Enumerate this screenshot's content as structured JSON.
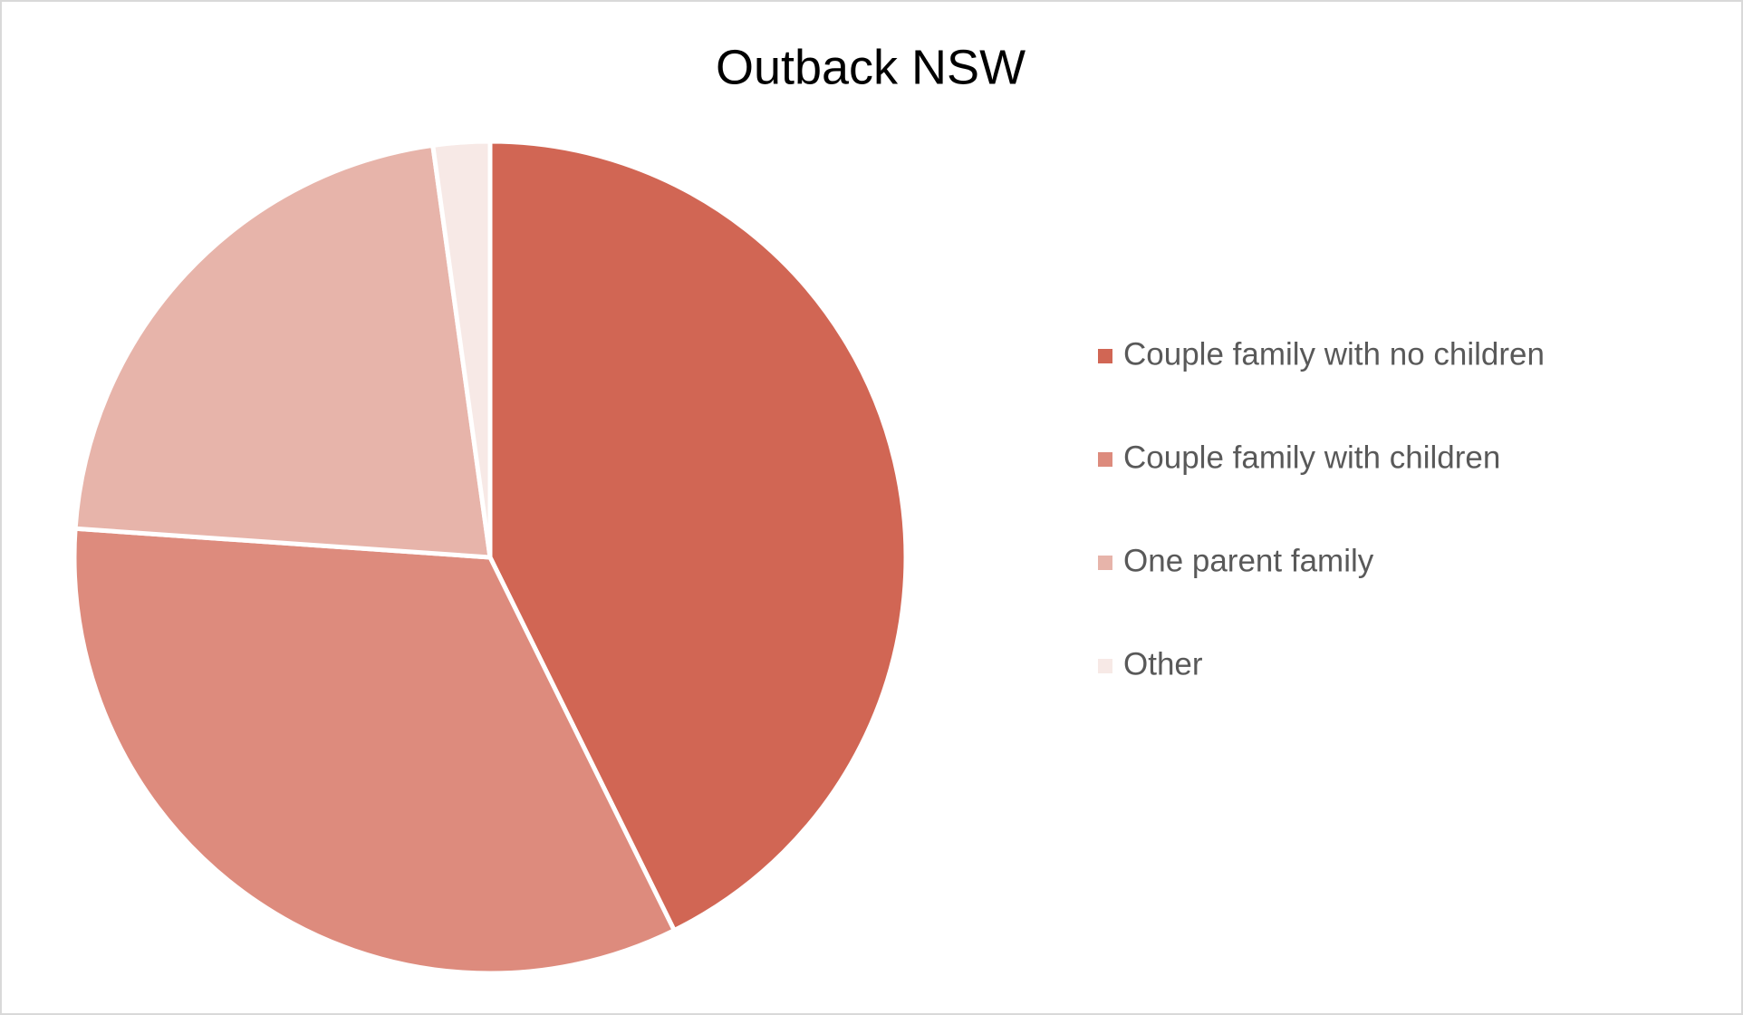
{
  "chart_data": {
    "type": "pie",
    "title": "Outback NSW",
    "categories": [
      "Couple family with no children",
      "Couple family with children",
      "One parent family",
      "Other"
    ],
    "values": [
      42.7,
      33.4,
      21.7,
      2.2
    ],
    "colors": [
      "#d16654",
      "#dd8b7d",
      "#e7b4aa",
      "#f7e9e6"
    ],
    "legend": "right"
  }
}
